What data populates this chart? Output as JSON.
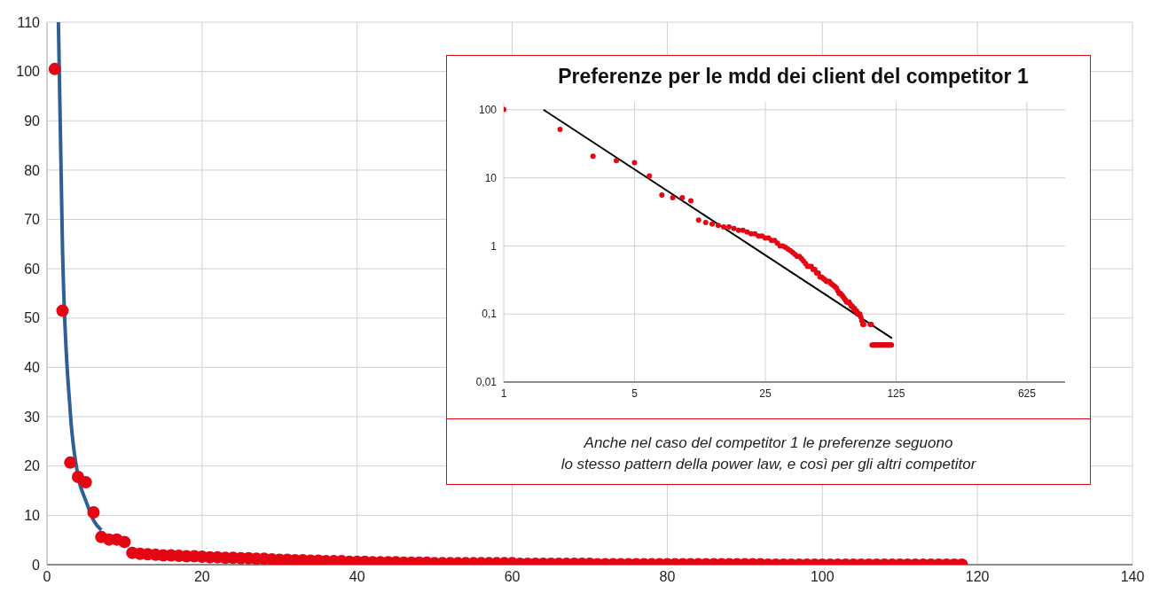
{
  "chart_data": [
    {
      "type": "scatter",
      "x": [
        1,
        2,
        3,
        4,
        5,
        6,
        7,
        8,
        9,
        10,
        11,
        12,
        13,
        14,
        15,
        16,
        17,
        18,
        19,
        20,
        21,
        22,
        23,
        24,
        25,
        26,
        27,
        28,
        29,
        30,
        31,
        32,
        33,
        34,
        35,
        36,
        37,
        38,
        39,
        40,
        41,
        42,
        43,
        44,
        45,
        46,
        47,
        48,
        49,
        50,
        51,
        52,
        53,
        54,
        55,
        56,
        57,
        58,
        59,
        60,
        61,
        62,
        63,
        64,
        65,
        66,
        67,
        68,
        69,
        70,
        71,
        72,
        73,
        74,
        75,
        76,
        77,
        78,
        79,
        80,
        81,
        82,
        83,
        84,
        85,
        86,
        87,
        88,
        89,
        90,
        91,
        92,
        93,
        94,
        95,
        96,
        97,
        98,
        99,
        100,
        101,
        102,
        103,
        104,
        105,
        106,
        107,
        108,
        109,
        110,
        111,
        112,
        113,
        114,
        115,
        116,
        117,
        118
      ],
      "series": [
        {
          "type": "scatter",
          "color": "#e30613",
          "marker": "circle",
          "values": [
            100.5,
            51.5,
            20.7,
            17.8,
            16.7,
            10.6,
            5.6,
            5.1,
            5.1,
            4.6,
            2.4,
            2.2,
            2.1,
            2.0,
            1.9,
            1.9,
            1.8,
            1.7,
            1.7,
            1.6,
            1.5,
            1.5,
            1.4,
            1.4,
            1.3,
            1.3,
            1.2,
            1.2,
            1.1,
            1.0,
            1.0,
            0.9,
            0.9,
            0.8,
            0.8,
            0.7,
            0.7,
            0.7,
            0.6,
            0.6,
            0.6,
            0.5,
            0.5,
            0.5,
            0.5,
            0.4,
            0.4,
            0.4,
            0.4,
            0.3,
            0.3,
            0.3,
            0.3,
            0.3,
            0.3,
            0.3,
            0.3,
            0.3,
            0.3,
            0.3,
            0.2,
            0.2,
            0.2,
            0.2,
            0.2,
            0.2,
            0.2,
            0.2,
            0.2,
            0.2,
            0.1,
            0.1,
            0.1,
            0.1,
            0.1,
            0.1,
            0.1,
            0.1,
            0.1,
            0.1,
            0.1,
            0.1,
            0.1,
            0.1,
            0.1,
            0.1,
            0.1,
            0.1,
            0.1,
            0.1,
            0.1,
            0.1,
            0.0,
            0.0,
            0.0,
            0.0,
            0.0,
            0.0,
            0.0,
            0.0,
            0.0,
            0.0,
            0.0,
            0.0,
            0.0,
            0.0,
            0.0,
            0.0,
            0.0,
            0.0,
            0.0,
            0.0,
            0.0,
            0.0,
            0.0,
            0.0,
            0.0,
            0.0
          ]
        },
        {
          "type": "line",
          "color": "#2e6094",
          "marker": "none",
          "x": [
            1.47,
            2,
            3,
            4,
            5,
            6,
            7
          ],
          "values": [
            110,
            64,
            31,
            18,
            13,
            9,
            7
          ]
        }
      ],
      "xlim": [
        0,
        140
      ],
      "xticks": [
        0,
        20,
        40,
        60,
        80,
        100,
        120,
        140
      ],
      "ylim": [
        0,
        110
      ],
      "yticks": [
        0,
        10,
        20,
        30,
        40,
        50,
        60,
        70,
        80,
        90,
        100,
        110
      ],
      "grid": true
    },
    {
      "type": "scatter",
      "title": "Preferenze per le mdd dei client del competitor 1",
      "annotations": [
        "Anche nel caso del competitor 1 le preferenze seguono\nlo stesso pattern della power law, e così per gli altri competitor"
      ],
      "x": [
        1,
        2,
        3,
        4,
        5,
        6,
        7,
        8,
        9,
        10,
        11,
        12,
        13,
        14,
        15,
        16,
        17,
        18,
        19,
        20,
        21,
        22,
        23,
        24,
        25,
        26,
        27,
        28,
        29,
        30,
        31,
        32,
        33,
        34,
        35,
        36,
        37,
        38,
        39,
        40,
        41,
        42,
        43,
        44,
        45,
        46,
        47,
        48,
        49,
        50,
        51,
        52,
        53,
        54,
        55,
        56,
        57,
        58,
        59,
        60,
        61,
        62,
        63,
        64,
        65,
        66,
        67,
        68,
        69,
        70,
        71,
        72,
        73,
        74,
        75,
        76,
        77,
        78,
        79,
        80,
        81,
        82,
        83,
        84,
        85,
        86,
        87,
        88,
        89,
        90,
        91,
        92,
        93,
        94,
        95,
        96,
        97,
        98,
        99,
        100,
        101,
        102,
        103,
        104,
        105,
        106,
        107,
        108,
        109,
        110,
        111,
        112,
        113,
        114,
        115,
        116,
        117,
        118
      ],
      "series": [
        {
          "type": "scatter",
          "color": "#e30613",
          "marker": "circle",
          "values": [
            100.5,
            51.5,
            20.7,
            17.8,
            16.7,
            10.6,
            5.6,
            5.1,
            5.1,
            4.6,
            2.4,
            2.2,
            2.1,
            2.0,
            1.9,
            1.9,
            1.8,
            1.7,
            1.7,
            1.6,
            1.5,
            1.5,
            1.4,
            1.4,
            1.3,
            1.3,
            1.2,
            1.2,
            1.1,
            1.0,
            1.0,
            0.95,
            0.9,
            0.85,
            0.8,
            0.75,
            0.7,
            0.7,
            0.65,
            0.6,
            0.55,
            0.5,
            0.5,
            0.5,
            0.45,
            0.45,
            0.4,
            0.4,
            0.35,
            0.35,
            0.33,
            0.32,
            0.3,
            0.3,
            0.3,
            0.28,
            0.27,
            0.26,
            0.25,
            0.24,
            0.22,
            0.2,
            0.2,
            0.19,
            0.18,
            0.17,
            0.16,
            0.15,
            0.15,
            0.15,
            0.14,
            0.13,
            0.13,
            0.12,
            0.12,
            0.11,
            0.11,
            0.1,
            0.1,
            0.1,
            0.09,
            0.08,
            0.07,
            0.07,
            null,
            null,
            null,
            null,
            null,
            null,
            0.07,
            0.07,
            0.035,
            0.035,
            0.035,
            0.035,
            0.035,
            0.035,
            0.035,
            0.035,
            0.035,
            0.035,
            0.035,
            0.035,
            0.035,
            0.035,
            0.035,
            0.035,
            0.035,
            0.035,
            0.035,
            0.035,
            0.035,
            0.035,
            0.035,
            0.035,
            0.035,
            0.035
          ]
        },
        {
          "type": "line",
          "color": "#000000",
          "marker": "none",
          "x": [
            1.63,
            119
          ],
          "values": [
            100,
            0.044
          ]
        }
      ],
      "log": "xy",
      "xlim": [
        1,
        1000
      ],
      "xticks": [
        1,
        5,
        25,
        125,
        625
      ],
      "ylim": [
        0.01,
        130
      ],
      "yticks": [
        {
          "value": 0.01,
          "label": "0,01"
        },
        {
          "value": 0.1,
          "label": "0,1"
        },
        1,
        10,
        100
      ],
      "grid": true
    }
  ]
}
